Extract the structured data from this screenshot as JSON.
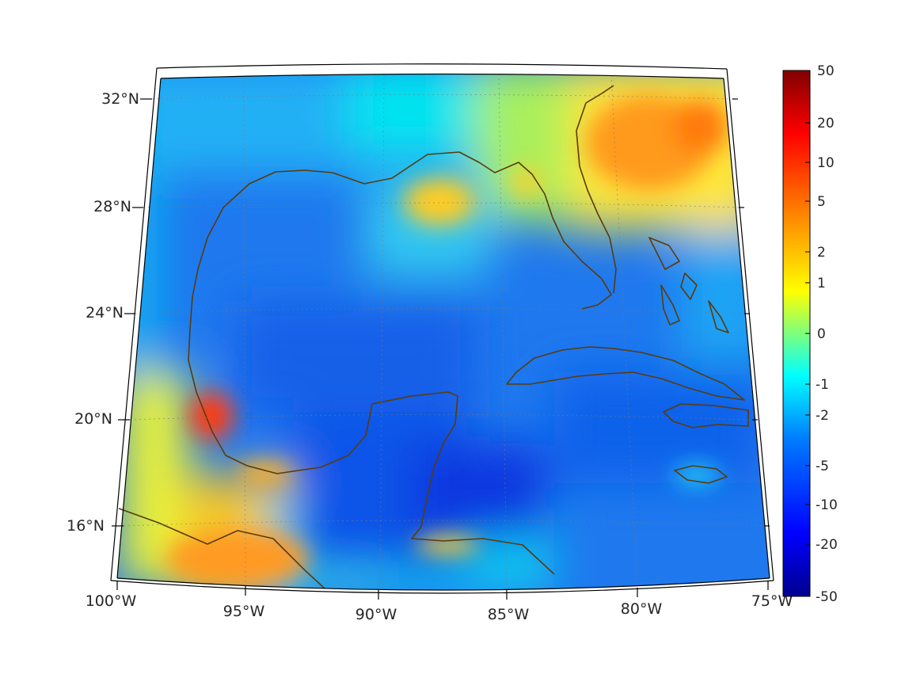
{
  "map": {
    "region": "Gulf of Mexico and Caribbean",
    "projection": "lambert-conic",
    "lat_ticks": [
      {
        "label": "32°N"
      },
      {
        "label": "28°N"
      },
      {
        "label": "24°N"
      },
      {
        "label": "20°N"
      },
      {
        "label": "16°N"
      }
    ],
    "lon_ticks": [
      {
        "label": "100°W"
      },
      {
        "label": "95°W"
      },
      {
        "label": "90°W"
      },
      {
        "label": "85°W"
      },
      {
        "label": "80°W"
      },
      {
        "label": "75°W"
      }
    ],
    "grid": "dotted",
    "coastline_color": "#5a3b0c",
    "colormap": "jet"
  },
  "colorbar": {
    "scale": "symmetric-log",
    "range": [
      -50,
      50
    ],
    "labels": [
      "50",
      "20",
      "10",
      "5",
      "2",
      "1",
      "0",
      "-1",
      "-2",
      "-5",
      "-10",
      "-20",
      "-50"
    ]
  }
}
